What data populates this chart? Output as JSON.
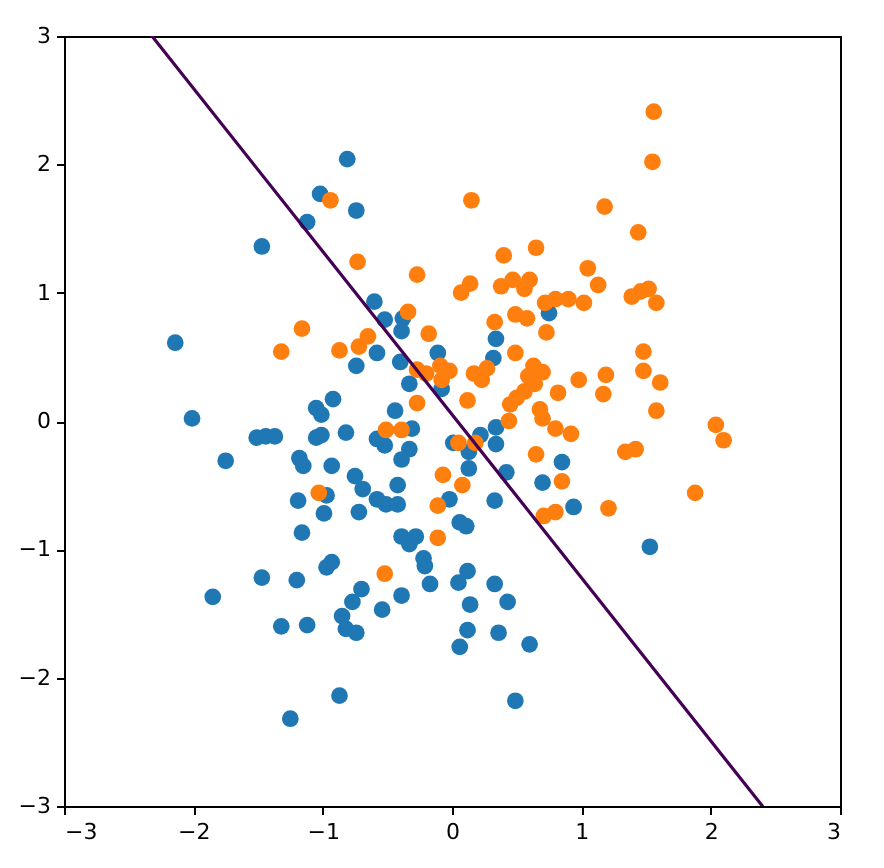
{
  "chart_data": {
    "type": "scatter",
    "xlim": [
      -3,
      3
    ],
    "ylim": [
      -3,
      3
    ],
    "xticks": [
      -3,
      -2,
      -1,
      0,
      1,
      2,
      3
    ],
    "yticks": [
      -3,
      -2,
      -1,
      0,
      1,
      2,
      3
    ],
    "grid": false,
    "legend": false,
    "series": [
      {
        "type": "scatter",
        "marker": "circle",
        "color": "#1f77b4",
        "x": [
          -0.81,
          -1.02,
          -0.74,
          -1.12,
          -1.47,
          -0.6,
          -0.52,
          -0.38,
          -0.39,
          -2.14,
          -0.58,
          -0.74,
          -0.4,
          -0.11,
          -0.33,
          -0.08,
          0.34,
          0.32,
          0.75,
          -2.01,
          -0.92,
          -1.05,
          -1.01,
          -0.44,
          -0.82,
          -1.51,
          -1.44,
          -1.37,
          -1.05,
          -1.01,
          -1.75,
          -1.18,
          -1.15,
          -0.93,
          -0.58,
          -0.52,
          -0.31,
          -0.33,
          -0.39,
          0.01,
          0.22,
          0.34,
          0.34,
          0.13,
          0.13,
          0.42,
          0.85,
          0.7,
          0.94,
          0.33,
          -0.75,
          -0.69,
          -0.58,
          -0.51,
          -0.42,
          -0.42,
          -0.97,
          -1.19,
          -0.99,
          -0.72,
          -0.02,
          0.06,
          0.11,
          -0.39,
          -0.33,
          -0.28,
          -1.16,
          -0.22,
          -0.21,
          -0.17,
          -0.93,
          -0.97,
          -1.47,
          -1.2,
          -0.7,
          -0.77,
          -0.54,
          -0.39,
          0.05,
          0.12,
          0.14,
          0.33,
          0.43,
          -0.85,
          -0.82,
          -0.74,
          -1.32,
          -1.12,
          -1.85,
          0.12,
          0.06,
          0.36,
          0.6,
          -0.87,
          -1.25,
          0.49,
          1.53
        ],
        "values": [
          2.04,
          1.77,
          1.64,
          1.55,
          1.36,
          0.93,
          0.79,
          0.8,
          0.7,
          0.61,
          0.53,
          0.43,
          0.46,
          0.53,
          0.29,
          0.25,
          0.64,
          0.49,
          0.84,
          0.02,
          0.17,
          0.1,
          0.05,
          0.08,
          -0.09,
          -0.13,
          -0.12,
          -0.12,
          -0.13,
          -0.11,
          -0.31,
          -0.29,
          -0.35,
          -0.35,
          -0.14,
          -0.19,
          -0.06,
          -0.22,
          -0.3,
          -0.17,
          -0.11,
          -0.05,
          -0.18,
          -0.24,
          -0.37,
          -0.4,
          -0.32,
          -0.48,
          -0.67,
          -0.62,
          -0.43,
          -0.53,
          -0.61,
          -0.65,
          -0.65,
          -0.5,
          -0.58,
          -0.62,
          -0.72,
          -0.71,
          -0.61,
          -0.79,
          -0.82,
          -0.9,
          -0.96,
          -0.9,
          -0.87,
          -1.07,
          -1.13,
          -1.27,
          -1.1,
          -1.14,
          -1.22,
          -1.24,
          -1.31,
          -1.41,
          -1.47,
          -1.36,
          -1.26,
          -1.17,
          -1.43,
          -1.27,
          -1.41,
          -1.52,
          -1.62,
          -1.65,
          -1.6,
          -1.59,
          -1.37,
          -1.63,
          -1.76,
          -1.65,
          -1.74,
          -2.14,
          -2.32,
          -2.18,
          -0.98
        ]
      },
      {
        "type": "scatter",
        "marker": "circle",
        "color": "#ff7f0e",
        "x": [
          -0.94,
          0.15,
          1.56,
          1.55,
          1.18,
          1.44,
          -0.73,
          -0.27,
          0.4,
          0.65,
          1.05,
          1.13,
          0.07,
          0.14,
          0.38,
          0.47,
          0.56,
          0.6,
          0.72,
          0.8,
          0.9,
          1.02,
          1.39,
          1.46,
          1.52,
          1.58,
          -1.16,
          -1.32,
          -0.87,
          -0.72,
          -0.65,
          -0.34,
          -0.18,
          0.33,
          0.49,
          0.58,
          0.73,
          0.49,
          0.63,
          0.59,
          0.7,
          0.64,
          0.17,
          0.23,
          0.27,
          -0.27,
          -0.2,
          -0.09,
          -0.02,
          -0.08,
          0.98,
          1.19,
          1.17,
          1.48,
          1.48,
          1.61,
          0.82,
          0.5,
          0.45,
          0.56,
          -0.27,
          0.12,
          0.68,
          0.7,
          0.44,
          1.58,
          2.04,
          2.1,
          0.8,
          0.92,
          -0.51,
          -0.39,
          0.05,
          0.18,
          1.34,
          1.42,
          0.65,
          -1.03,
          -0.07,
          0.08,
          0.85,
          1.88,
          -0.11,
          0.71,
          0.8,
          1.21,
          -0.11,
          -0.52
        ],
        "values": [
          1.72,
          1.72,
          2.41,
          2.02,
          1.67,
          1.47,
          1.24,
          1.14,
          1.29,
          1.35,
          1.19,
          1.06,
          1.0,
          1.07,
          1.05,
          1.1,
          1.03,
          1.1,
          0.92,
          0.95,
          0.95,
          0.92,
          0.97,
          1.01,
          1.03,
          0.92,
          0.72,
          0.54,
          0.55,
          0.58,
          0.66,
          0.85,
          0.68,
          0.77,
          0.83,
          0.8,
          0.69,
          0.53,
          0.43,
          0.35,
          0.38,
          0.29,
          0.37,
          0.32,
          0.41,
          0.4,
          0.37,
          0.43,
          0.39,
          0.32,
          0.32,
          0.36,
          0.21,
          0.54,
          0.39,
          0.3,
          0.22,
          0.18,
          0.13,
          0.23,
          0.14,
          0.16,
          0.09,
          0.02,
          0.0,
          0.08,
          -0.03,
          -0.15,
          -0.06,
          -0.1,
          -0.07,
          -0.07,
          -0.17,
          -0.17,
          -0.24,
          -0.22,
          -0.26,
          -0.56,
          -0.42,
          -0.5,
          -0.47,
          -0.56,
          -0.66,
          -0.74,
          -0.71,
          -0.68,
          -0.91,
          -1.19
        ]
      },
      {
        "type": "line",
        "color": "#440154",
        "line_style": "solid",
        "x": [
          -2.32,
          2.4
        ],
        "values": [
          3,
          -3
        ]
      }
    ]
  }
}
